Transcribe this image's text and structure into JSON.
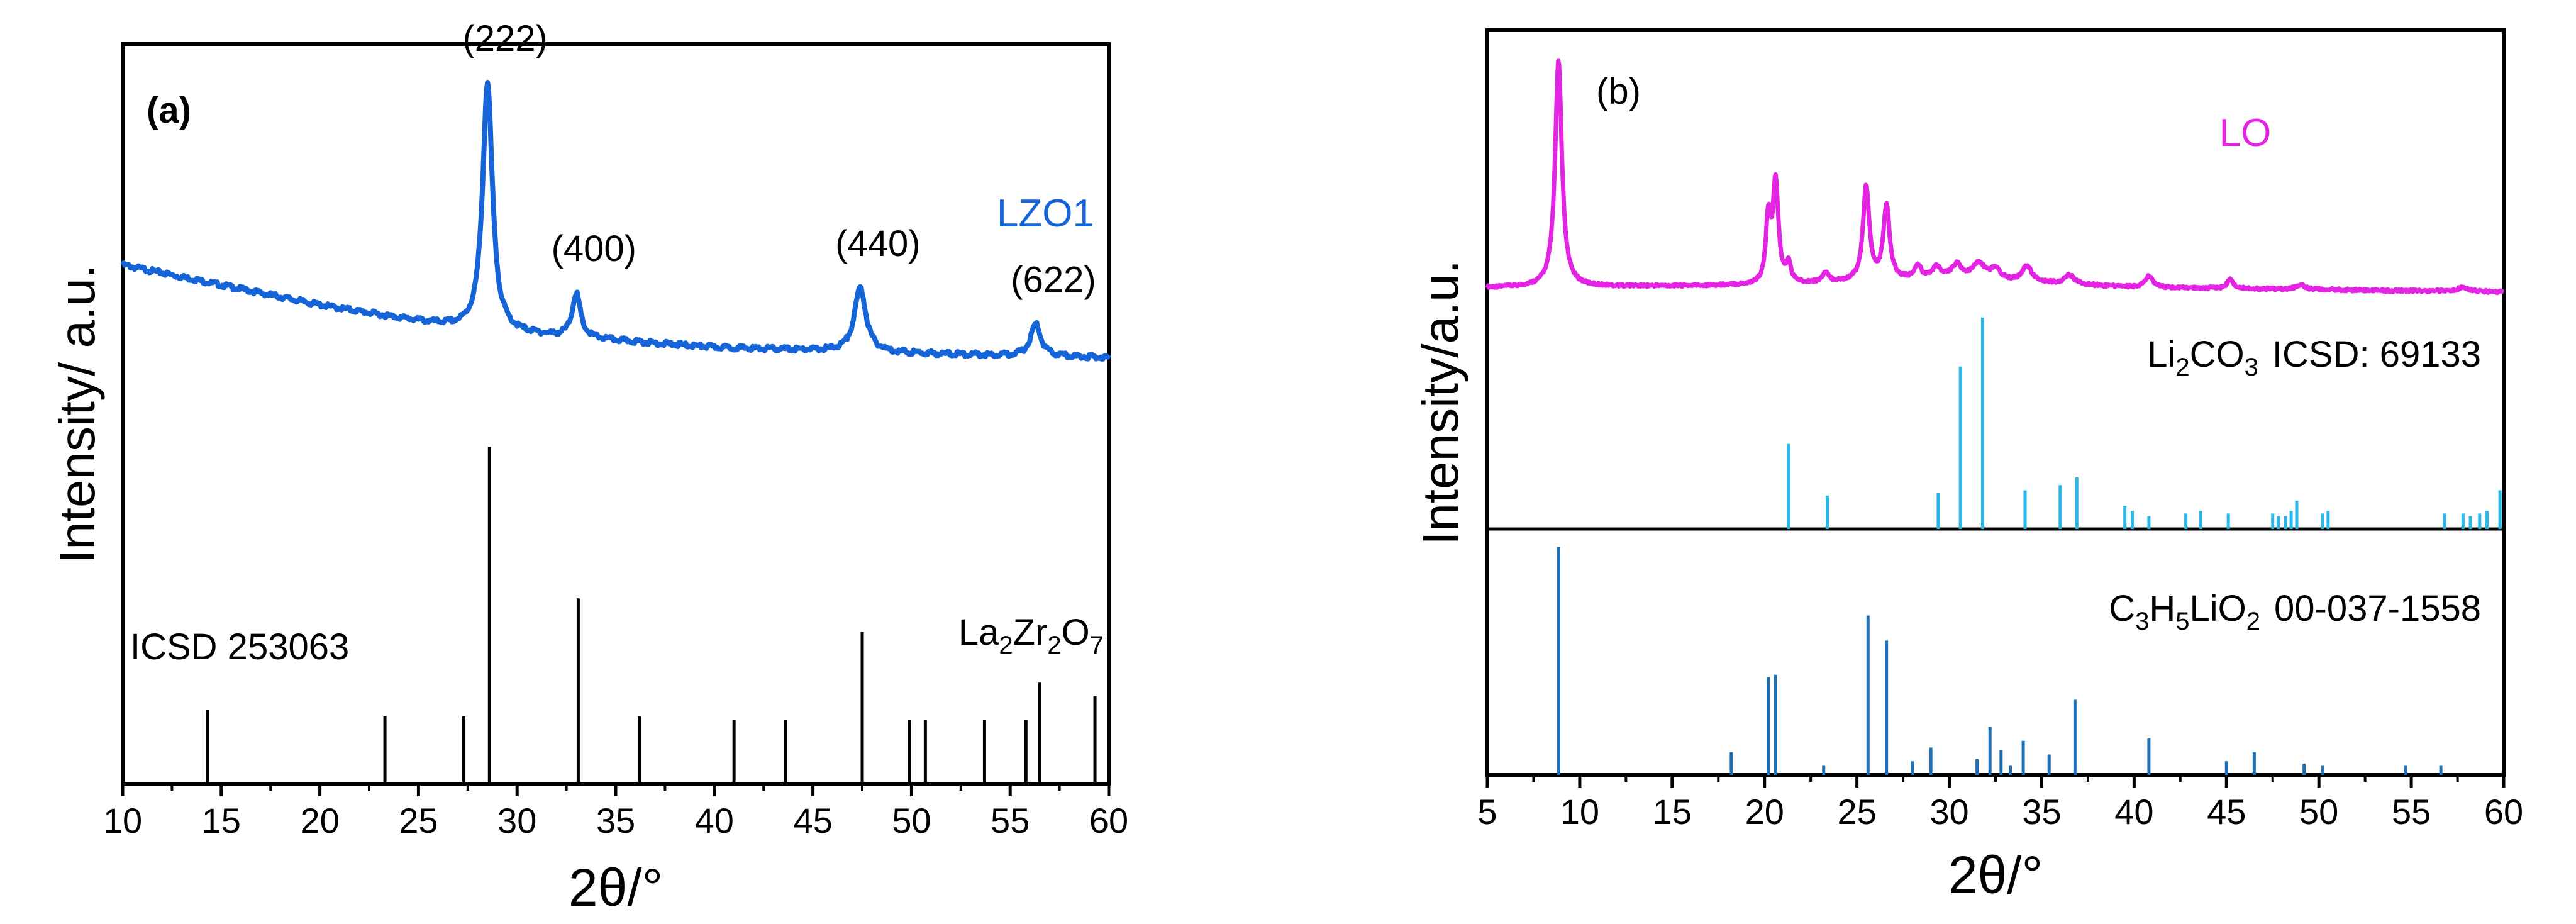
{
  "chart_data": [
    {
      "type": "line",
      "panel_label": "(a)",
      "xlabel": "2θ/°",
      "ylabel": "Intensity/ a.u.",
      "xlim": [
        10,
        60
      ],
      "xticks": [
        "10",
        "15",
        "20",
        "25",
        "30",
        "35",
        "40",
        "45",
        "50",
        "55",
        "60"
      ],
      "series": [
        {
          "name": "LZO1",
          "color": "#1565d8",
          "baseline": [
            [
              10,
              0.42
            ],
            [
              20,
              0.32
            ],
            [
              28,
              0.255
            ],
            [
              40,
              0.215
            ],
            [
              50,
              0.2
            ],
            [
              60,
              0.19
            ]
          ],
          "peaks": [
            {
              "x": 28.5,
              "height": 0.62,
              "width": 0.3
            },
            {
              "x": 33.0,
              "height": 0.11,
              "width": 0.25
            },
            {
              "x": 47.4,
              "height": 0.16,
              "width": 0.35
            },
            {
              "x": 56.3,
              "height": 0.08,
              "width": 0.3
            }
          ]
        }
      ],
      "peak_labels": [
        {
          "x": 28.5,
          "text": "(222)"
        },
        {
          "x": 33.0,
          "text": "(400)"
        },
        {
          "x": 47.4,
          "text": "(440)"
        },
        {
          "x": 56.3,
          "text": "(622)"
        }
      ],
      "reference": {
        "name": "ICSD 253063",
        "formula": {
          "el1": "La",
          "n1": "2",
          "el2": "Zr",
          "n2": "2",
          "el3": "O",
          "n3": "7"
        },
        "color": "#000000",
        "lines": [
          [
            14.3,
            0.22
          ],
          [
            23.3,
            0.2
          ],
          [
            27.3,
            0.2
          ],
          [
            28.6,
            1.0
          ],
          [
            33.1,
            0.55
          ],
          [
            36.2,
            0.2
          ],
          [
            41.0,
            0.19
          ],
          [
            43.6,
            0.19
          ],
          [
            47.5,
            0.45
          ],
          [
            49.9,
            0.19
          ],
          [
            50.7,
            0.19
          ],
          [
            53.7,
            0.19
          ],
          [
            55.8,
            0.19
          ],
          [
            56.5,
            0.3
          ],
          [
            59.3,
            0.26
          ]
        ]
      }
    },
    {
      "type": "line",
      "panel_label": "(b)",
      "xlabel": "2θ/°",
      "ylabel": "Intensity/a.u.",
      "xlim": [
        5,
        60
      ],
      "xticks": [
        "5",
        "10",
        "15",
        "20",
        "25",
        "30",
        "35",
        "40",
        "45",
        "50",
        "55",
        "60"
      ],
      "series": [
        {
          "name": "LO",
          "color": "#e324e3",
          "baseline": [
            [
              5,
              0.05
            ],
            [
              20,
              0.06
            ],
            [
              30,
              0.09
            ],
            [
              40,
              0.05
            ],
            [
              60,
              0.03
            ]
          ],
          "peaks": [
            {
              "x": 8.85,
              "height": 1.0,
              "width": 0.22
            },
            {
              "x": 20.2,
              "height": 0.28,
              "width": 0.15
            },
            {
              "x": 20.6,
              "height": 0.45,
              "width": 0.18
            },
            {
              "x": 21.3,
              "height": 0.08,
              "width": 0.15
            },
            {
              "x": 23.3,
              "height": 0.04,
              "width": 0.2
            },
            {
              "x": 25.5,
              "height": 0.42,
              "width": 0.2
            },
            {
              "x": 26.6,
              "height": 0.33,
              "width": 0.2
            },
            {
              "x": 28.3,
              "height": 0.06,
              "width": 0.2
            },
            {
              "x": 29.3,
              "height": 0.05,
              "width": 0.25
            },
            {
              "x": 30.4,
              "height": 0.06,
              "width": 0.3
            },
            {
              "x": 31.6,
              "height": 0.07,
              "width": 0.4
            },
            {
              "x": 32.5,
              "height": 0.05,
              "width": 0.3
            },
            {
              "x": 34.2,
              "height": 0.07,
              "width": 0.3
            },
            {
              "x": 36.5,
              "height": 0.04,
              "width": 0.3
            },
            {
              "x": 40.8,
              "height": 0.05,
              "width": 0.25
            },
            {
              "x": 45.2,
              "height": 0.04,
              "width": 0.2
            },
            {
              "x": 49.0,
              "height": 0.02,
              "width": 0.3
            },
            {
              "x": 57.8,
              "height": 0.02,
              "width": 0.3
            }
          ]
        }
      ],
      "references": [
        {
          "name": "ICSD: 69133",
          "formula": {
            "el1": "Li",
            "n1": "2",
            "el2": "CO",
            "n2": "3"
          },
          "color": "#29b6e8",
          "lines": [
            [
              21.3,
              0.33
            ],
            [
              23.4,
              0.13
            ],
            [
              29.4,
              0.14
            ],
            [
              30.6,
              0.63
            ],
            [
              31.8,
              0.82
            ],
            [
              34.1,
              0.15
            ],
            [
              36.0,
              0.17
            ],
            [
              36.9,
              0.2
            ],
            [
              39.5,
              0.09
            ],
            [
              39.9,
              0.07
            ],
            [
              40.8,
              0.05
            ],
            [
              42.8,
              0.06
            ],
            [
              43.6,
              0.07
            ],
            [
              45.1,
              0.06
            ],
            [
              47.5,
              0.06
            ],
            [
              47.8,
              0.05
            ],
            [
              48.2,
              0.05
            ],
            [
              48.5,
              0.07
            ],
            [
              48.8,
              0.11
            ],
            [
              50.2,
              0.06
            ],
            [
              50.5,
              0.07
            ],
            [
              56.8,
              0.06
            ],
            [
              57.8,
              0.06
            ],
            [
              58.2,
              0.05
            ],
            [
              58.7,
              0.06
            ],
            [
              59.1,
              0.07
            ],
            [
              59.8,
              0.15
            ]
          ]
        },
        {
          "name": "00-037-1558",
          "formula": {
            "el1": "C",
            "n1": "3",
            "el2": "H",
            "n2": "5",
            "el3": "LiO",
            "n3": "2"
          },
          "color": "#1f6fb3",
          "lines": [
            [
              8.85,
              1.0
            ],
            [
              18.2,
              0.1
            ],
            [
              20.2,
              0.43
            ],
            [
              20.6,
              0.44
            ],
            [
              23.2,
              0.04
            ],
            [
              25.6,
              0.7
            ],
            [
              26.6,
              0.59
            ],
            [
              28.0,
              0.06
            ],
            [
              29.0,
              0.12
            ],
            [
              31.5,
              0.07
            ],
            [
              32.2,
              0.21
            ],
            [
              32.8,
              0.11
            ],
            [
              33.3,
              0.04
            ],
            [
              34.0,
              0.15
            ],
            [
              35.4,
              0.09
            ],
            [
              36.8,
              0.33
            ],
            [
              40.8,
              0.16
            ],
            [
              45.0,
              0.06
            ],
            [
              46.5,
              0.1
            ],
            [
              49.2,
              0.05
            ],
            [
              50.2,
              0.04
            ],
            [
              54.7,
              0.04
            ],
            [
              56.6,
              0.04
            ]
          ]
        }
      ]
    }
  ]
}
